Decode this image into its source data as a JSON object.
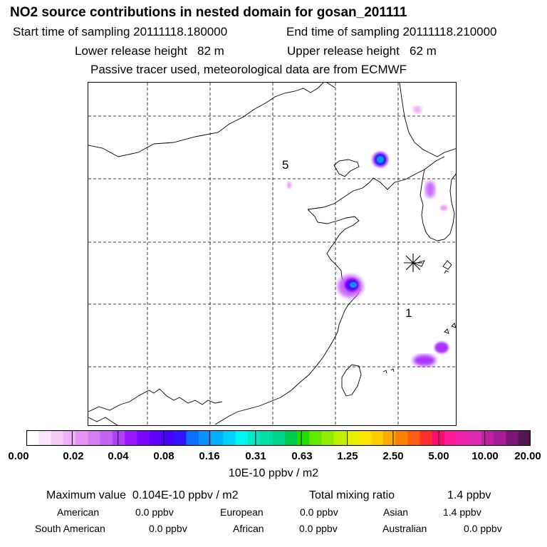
{
  "header": {
    "title": "NO2 source contributions in nested domain for gosan_201111",
    "start_label": "Start time of sampling 20111118.180000",
    "end_label": "End time of sampling 20111118.210000",
    "lower_label": "Lower release height   82 m",
    "upper_label": "Upper release height   62 m",
    "tracer_note": "Passive tracer used, meteorological data are from ECMWF"
  },
  "map": {
    "receptor_marker": "asterisk-marker",
    "labels": [
      {
        "text": "5"
      },
      {
        "text": "1"
      }
    ],
    "plume_colors": [
      "#ee99ee",
      "#aa33ff",
      "#2a2aff",
      "#0a8fff",
      "#cc66ff"
    ]
  },
  "colorbar": {
    "colors": [
      "#ffffff",
      "#fbe6fb",
      "#f4ccf4",
      "#eeb1f5",
      "#e695f6",
      "#d67cf5",
      "#c462f8",
      "#b040fb",
      "#9a18ff",
      "#7d05ff",
      "#6000ff",
      "#4800ff",
      "#2f16ff",
      "#0a6eff",
      "#0a8fff",
      "#00b0ff",
      "#00d2f8",
      "#00f5f0",
      "#00eac8",
      "#00dfa8",
      "#00d48c",
      "#00cc50",
      "#22dd00",
      "#60e800",
      "#90ee00",
      "#c0f000",
      "#e6f000",
      "#ffe400",
      "#ffcc00",
      "#ffaa00",
      "#ff8000",
      "#ff5c10",
      "#ff2d2d",
      "#ff0a70",
      "#ff1a9a",
      "#ee22aa",
      "#dd2ab0",
      "#c41ea8",
      "#a81c98",
      "#7c1678",
      "#551550"
    ],
    "tick_labels": [
      "0.00",
      "0.02",
      "0.04",
      "0.08",
      "0.16",
      "0.31",
      "0.63",
      "1.25",
      "2.50",
      "5.00",
      "10.00",
      "20.00"
    ],
    "unit": "10E-10 ppbv / m2"
  },
  "stats": {
    "max_label": "Maximum value  0.104E-10 ppbv / m2",
    "total_label": "Total mixing ratio",
    "total_value": "1.4 ppbv",
    "regions": [
      {
        "name": "American",
        "value": "0.0 ppbv"
      },
      {
        "name": "European",
        "value": "0.0 ppbv"
      },
      {
        "name": "Asian",
        "value": "1.4 ppbv"
      },
      {
        "name": "South American",
        "value": "0.0 ppbv"
      },
      {
        "name": "African",
        "value": "0.0 ppbv"
      },
      {
        "name": "Australian",
        "value": "0.0 ppbv"
      }
    ]
  }
}
